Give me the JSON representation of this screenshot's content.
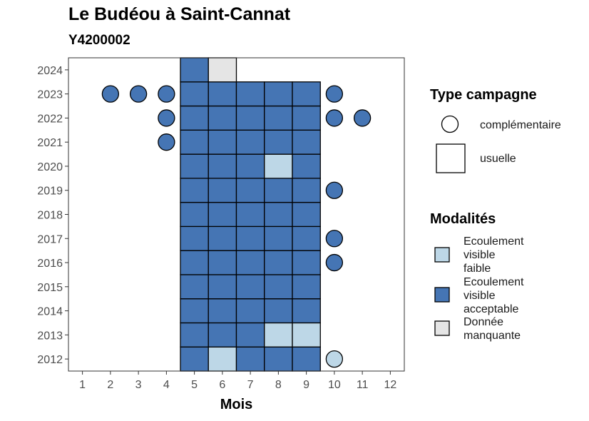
{
  "chart_data": {
    "type": "scatter",
    "title": "Le Budéou à Saint-Cannat",
    "subtitle": "Y4200002",
    "xlabel": "Mois",
    "ylabel": "",
    "x_ticks": [
      "1",
      "2",
      "3",
      "4",
      "5",
      "6",
      "7",
      "8",
      "9",
      "10",
      "11",
      "12"
    ],
    "y_ticks": [
      "2012",
      "2013",
      "2014",
      "2015",
      "2016",
      "2017",
      "2018",
      "2019",
      "2020",
      "2021",
      "2022",
      "2023",
      "2024"
    ],
    "xlim": [
      0.5,
      12.5
    ],
    "ylim": [
      2011.5,
      2024.5
    ],
    "grid": false,
    "colors": {
      "Ecoulement visible faible": "#bdd7e7",
      "Ecoulement visible acceptable": "#4575b4",
      "Donnée manquante": "#e5e5e5"
    },
    "legend_type": {
      "title": "Type campagne",
      "items": [
        {
          "label": "complémentaire",
          "shape": "circle"
        },
        {
          "label": "usuelle",
          "shape": "square"
        }
      ]
    },
    "legend_modalites": {
      "title": "Modalités",
      "items": [
        {
          "label_lines": [
            "Ecoulement",
            "visible",
            "faible"
          ],
          "key": "Ecoulement visible faible"
        },
        {
          "label_lines": [
            "Ecoulement",
            "visible",
            "acceptable"
          ],
          "key": "Ecoulement visible acceptable"
        },
        {
          "label_lines": [
            "Donnée",
            "manquante"
          ],
          "key": "Donnée manquante"
        }
      ]
    },
    "points": [
      {
        "m": 5,
        "y": 2012,
        "shape": "square",
        "mod": "Ecoulement visible acceptable"
      },
      {
        "m": 6,
        "y": 2012,
        "shape": "square",
        "mod": "Ecoulement visible faible"
      },
      {
        "m": 7,
        "y": 2012,
        "shape": "square",
        "mod": "Ecoulement visible acceptable"
      },
      {
        "m": 8,
        "y": 2012,
        "shape": "square",
        "mod": "Ecoulement visible acceptable"
      },
      {
        "m": 9,
        "y": 2012,
        "shape": "square",
        "mod": "Ecoulement visible acceptable"
      },
      {
        "m": 10,
        "y": 2012,
        "shape": "circle",
        "mod": "Ecoulement visible faible"
      },
      {
        "m": 5,
        "y": 2013,
        "shape": "square",
        "mod": "Ecoulement visible acceptable"
      },
      {
        "m": 6,
        "y": 2013,
        "shape": "square",
        "mod": "Ecoulement visible acceptable"
      },
      {
        "m": 7,
        "y": 2013,
        "shape": "square",
        "mod": "Ecoulement visible acceptable"
      },
      {
        "m": 8,
        "y": 2013,
        "shape": "square",
        "mod": "Ecoulement visible faible"
      },
      {
        "m": 9,
        "y": 2013,
        "shape": "square",
        "mod": "Ecoulement visible faible"
      },
      {
        "m": 5,
        "y": 2014,
        "shape": "square",
        "mod": "Ecoulement visible acceptable"
      },
      {
        "m": 6,
        "y": 2014,
        "shape": "square",
        "mod": "Ecoulement visible acceptable"
      },
      {
        "m": 7,
        "y": 2014,
        "shape": "square",
        "mod": "Ecoulement visible acceptable"
      },
      {
        "m": 8,
        "y": 2014,
        "shape": "square",
        "mod": "Ecoulement visible acceptable"
      },
      {
        "m": 9,
        "y": 2014,
        "shape": "square",
        "mod": "Ecoulement visible acceptable"
      },
      {
        "m": 5,
        "y": 2015,
        "shape": "square",
        "mod": "Ecoulement visible acceptable"
      },
      {
        "m": 6,
        "y": 2015,
        "shape": "square",
        "mod": "Ecoulement visible acceptable"
      },
      {
        "m": 7,
        "y": 2015,
        "shape": "square",
        "mod": "Ecoulement visible acceptable"
      },
      {
        "m": 8,
        "y": 2015,
        "shape": "square",
        "mod": "Ecoulement visible acceptable"
      },
      {
        "m": 9,
        "y": 2015,
        "shape": "square",
        "mod": "Ecoulement visible acceptable"
      },
      {
        "m": 5,
        "y": 2016,
        "shape": "square",
        "mod": "Ecoulement visible acceptable"
      },
      {
        "m": 6,
        "y": 2016,
        "shape": "square",
        "mod": "Ecoulement visible acceptable"
      },
      {
        "m": 7,
        "y": 2016,
        "shape": "square",
        "mod": "Ecoulement visible acceptable"
      },
      {
        "m": 8,
        "y": 2016,
        "shape": "square",
        "mod": "Ecoulement visible acceptable"
      },
      {
        "m": 9,
        "y": 2016,
        "shape": "square",
        "mod": "Ecoulement visible acceptable"
      },
      {
        "m": 10,
        "y": 2016,
        "shape": "circle",
        "mod": "Ecoulement visible acceptable"
      },
      {
        "m": 5,
        "y": 2017,
        "shape": "square",
        "mod": "Ecoulement visible acceptable"
      },
      {
        "m": 6,
        "y": 2017,
        "shape": "square",
        "mod": "Ecoulement visible acceptable"
      },
      {
        "m": 7,
        "y": 2017,
        "shape": "square",
        "mod": "Ecoulement visible acceptable"
      },
      {
        "m": 8,
        "y": 2017,
        "shape": "square",
        "mod": "Ecoulement visible acceptable"
      },
      {
        "m": 9,
        "y": 2017,
        "shape": "square",
        "mod": "Ecoulement visible acceptable"
      },
      {
        "m": 10,
        "y": 2017,
        "shape": "circle",
        "mod": "Ecoulement visible acceptable"
      },
      {
        "m": 5,
        "y": 2018,
        "shape": "square",
        "mod": "Ecoulement visible acceptable"
      },
      {
        "m": 6,
        "y": 2018,
        "shape": "square",
        "mod": "Ecoulement visible acceptable"
      },
      {
        "m": 7,
        "y": 2018,
        "shape": "square",
        "mod": "Ecoulement visible acceptable"
      },
      {
        "m": 8,
        "y": 2018,
        "shape": "square",
        "mod": "Ecoulement visible acceptable"
      },
      {
        "m": 9,
        "y": 2018,
        "shape": "square",
        "mod": "Ecoulement visible acceptable"
      },
      {
        "m": 5,
        "y": 2019,
        "shape": "square",
        "mod": "Ecoulement visible acceptable"
      },
      {
        "m": 6,
        "y": 2019,
        "shape": "square",
        "mod": "Ecoulement visible acceptable"
      },
      {
        "m": 7,
        "y": 2019,
        "shape": "square",
        "mod": "Ecoulement visible acceptable"
      },
      {
        "m": 8,
        "y": 2019,
        "shape": "square",
        "mod": "Ecoulement visible acceptable"
      },
      {
        "m": 9,
        "y": 2019,
        "shape": "square",
        "mod": "Ecoulement visible acceptable"
      },
      {
        "m": 10,
        "y": 2019,
        "shape": "circle",
        "mod": "Ecoulement visible acceptable"
      },
      {
        "m": 5,
        "y": 2020,
        "shape": "square",
        "mod": "Ecoulement visible acceptable"
      },
      {
        "m": 6,
        "y": 2020,
        "shape": "square",
        "mod": "Ecoulement visible acceptable"
      },
      {
        "m": 7,
        "y": 2020,
        "shape": "square",
        "mod": "Ecoulement visible acceptable"
      },
      {
        "m": 8,
        "y": 2020,
        "shape": "square",
        "mod": "Ecoulement visible faible"
      },
      {
        "m": 9,
        "y": 2020,
        "shape": "square",
        "mod": "Ecoulement visible acceptable"
      },
      {
        "m": 4,
        "y": 2021,
        "shape": "circle",
        "mod": "Ecoulement visible acceptable"
      },
      {
        "m": 5,
        "y": 2021,
        "shape": "square",
        "mod": "Ecoulement visible acceptable"
      },
      {
        "m": 6,
        "y": 2021,
        "shape": "square",
        "mod": "Ecoulement visible acceptable"
      },
      {
        "m": 7,
        "y": 2021,
        "shape": "square",
        "mod": "Ecoulement visible acceptable"
      },
      {
        "m": 8,
        "y": 2021,
        "shape": "square",
        "mod": "Ecoulement visible acceptable"
      },
      {
        "m": 9,
        "y": 2021,
        "shape": "square",
        "mod": "Ecoulement visible acceptable"
      },
      {
        "m": 4,
        "y": 2022,
        "shape": "circle",
        "mod": "Ecoulement visible acceptable"
      },
      {
        "m": 5,
        "y": 2022,
        "shape": "square",
        "mod": "Ecoulement visible acceptable"
      },
      {
        "m": 6,
        "y": 2022,
        "shape": "square",
        "mod": "Ecoulement visible acceptable"
      },
      {
        "m": 7,
        "y": 2022,
        "shape": "square",
        "mod": "Ecoulement visible acceptable"
      },
      {
        "m": 8,
        "y": 2022,
        "shape": "square",
        "mod": "Ecoulement visible acceptable"
      },
      {
        "m": 9,
        "y": 2022,
        "shape": "square",
        "mod": "Ecoulement visible acceptable"
      },
      {
        "m": 10,
        "y": 2022,
        "shape": "circle",
        "mod": "Ecoulement visible acceptable"
      },
      {
        "m": 11,
        "y": 2022,
        "shape": "circle",
        "mod": "Ecoulement visible acceptable"
      },
      {
        "m": 2,
        "y": 2023,
        "shape": "circle",
        "mod": "Ecoulement visible acceptable"
      },
      {
        "m": 3,
        "y": 2023,
        "shape": "circle",
        "mod": "Ecoulement visible acceptable"
      },
      {
        "m": 4,
        "y": 2023,
        "shape": "circle",
        "mod": "Ecoulement visible acceptable"
      },
      {
        "m": 5,
        "y": 2023,
        "shape": "square",
        "mod": "Ecoulement visible acceptable"
      },
      {
        "m": 6,
        "y": 2023,
        "shape": "square",
        "mod": "Ecoulement visible acceptable"
      },
      {
        "m": 7,
        "y": 2023,
        "shape": "square",
        "mod": "Ecoulement visible acceptable"
      },
      {
        "m": 8,
        "y": 2023,
        "shape": "square",
        "mod": "Ecoulement visible acceptable"
      },
      {
        "m": 9,
        "y": 2023,
        "shape": "square",
        "mod": "Ecoulement visible acceptable"
      },
      {
        "m": 10,
        "y": 2023,
        "shape": "circle",
        "mod": "Ecoulement visible acceptable"
      },
      {
        "m": 5,
        "y": 2024,
        "shape": "square",
        "mod": "Ecoulement visible acceptable"
      },
      {
        "m": 6,
        "y": 2024,
        "shape": "square",
        "mod": "Donnée manquante"
      }
    ]
  }
}
